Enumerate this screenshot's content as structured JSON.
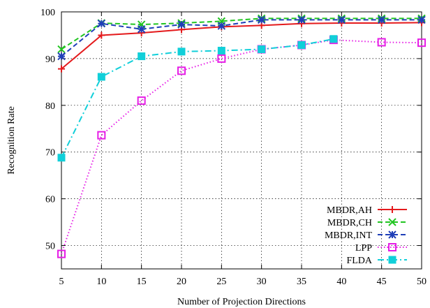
{
  "chart_data": {
    "type": "line",
    "title": "",
    "xlabel": "Number of Projection Directions",
    "ylabel": "Recognition Rate",
    "xlim": [
      5,
      50
    ],
    "ylim": [
      45,
      100
    ],
    "xticks": [
      5,
      10,
      15,
      20,
      25,
      30,
      35,
      40,
      45,
      50
    ],
    "yticks": [
      50,
      60,
      70,
      80,
      90,
      100
    ],
    "grid": true,
    "legend_position": "bottom-right",
    "series": [
      {
        "name": "MBDR,AH",
        "color": "#e41a1c",
        "marker": "plus",
        "dash": "solid",
        "x": [
          5,
          10,
          15,
          20,
          25,
          30,
          35,
          40,
          45,
          50
        ],
        "y": [
          87.8,
          95.0,
          95.5,
          96.2,
          96.8,
          97.1,
          97.5,
          97.6,
          97.6,
          97.7
        ]
      },
      {
        "name": "MBDR,CH",
        "color": "#22c522",
        "marker": "x",
        "dash": "dashed",
        "x": [
          5,
          10,
          15,
          20,
          25,
          30,
          35,
          40,
          45,
          50
        ],
        "y": [
          92.0,
          97.6,
          97.3,
          97.6,
          98.0,
          98.6,
          98.6,
          98.6,
          98.6,
          98.6
        ]
      },
      {
        "name": "MBDR,INT",
        "color": "#1f3fb8",
        "marker": "star",
        "dash": "dashed",
        "x": [
          5,
          10,
          15,
          20,
          25,
          30,
          35,
          40,
          45,
          50
        ],
        "y": [
          90.5,
          97.5,
          96.3,
          97.3,
          97.0,
          98.3,
          98.3,
          98.3,
          98.3,
          98.3
        ]
      },
      {
        "name": "LPP",
        "color": "#e61ee6",
        "marker": "square-open",
        "dash": "dotted",
        "x": [
          5,
          10,
          15,
          20,
          25,
          30,
          35,
          39,
          45,
          50
        ],
        "y": [
          48.2,
          73.6,
          81.0,
          87.4,
          90.0,
          92.0,
          92.9,
          94.0,
          93.5,
          93.4
        ]
      },
      {
        "name": "FLDA",
        "color": "#11cfd9",
        "marker": "square-filled",
        "dash": "dashdot",
        "x": [
          5,
          10,
          15,
          20,
          25,
          30,
          35,
          39
        ],
        "y": [
          68.8,
          86.1,
          90.5,
          91.5,
          91.7,
          92.0,
          92.9,
          94.2
        ]
      }
    ]
  }
}
